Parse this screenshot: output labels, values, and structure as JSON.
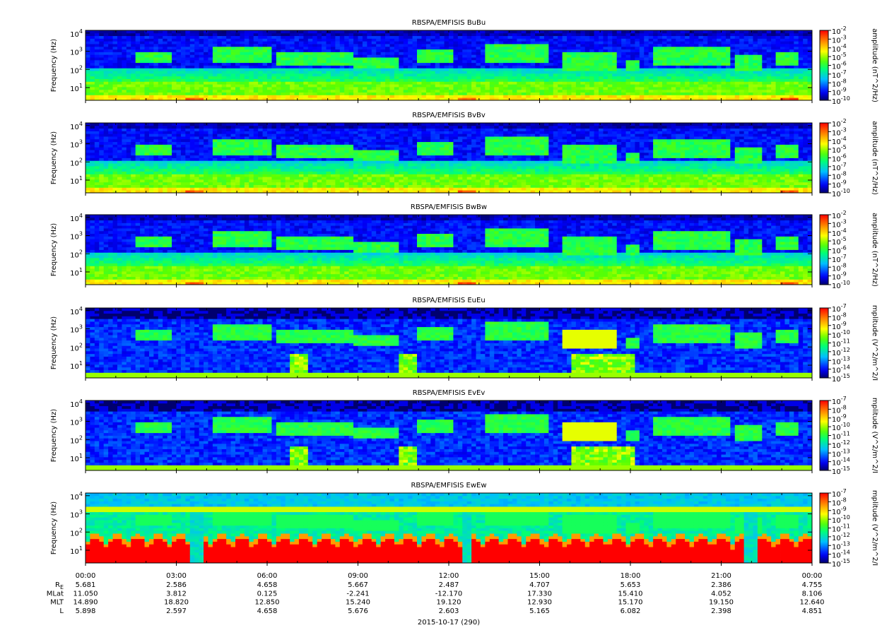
{
  "chart_data": [
    {
      "type": "spectrogram",
      "title": "RBSPA/EMFISIS  BuBu",
      "ylabel": "Frequency (Hz)",
      "ylim": [
        2,
        14000
      ],
      "log_y": true,
      "yticks": [
        {
          "value": 10,
          "label": "10",
          "power": "1"
        },
        {
          "value": 100,
          "label": "10",
          "power": "2"
        },
        {
          "value": 1000,
          "label": "10",
          "power": "3"
        },
        {
          "value": 10000,
          "label": "10",
          "power": "4"
        }
      ],
      "colorbar_label": "amplitude (nT^2/Hz)",
      "zlim": [
        1e-10,
        0.01
      ],
      "log_z": true,
      "zticks": [
        {
          "value": 1e-10,
          "label": "10",
          "power": "-10"
        },
        {
          "value": 1e-09,
          "label": "10",
          "power": "-9"
        },
        {
          "value": 1e-08,
          "label": "10",
          "power": "-8"
        },
        {
          "value": 1e-07,
          "label": "10",
          "power": "-7"
        },
        {
          "value": 1e-06,
          "label": "10",
          "power": "-6"
        },
        {
          "value": 1e-05,
          "label": "10",
          "power": "-5"
        },
        {
          "value": 0.0001,
          "label": "10",
          "power": "-4"
        },
        {
          "value": 0.001,
          "label": "10",
          "power": "-3"
        },
        {
          "value": 0.01,
          "label": "10",
          "power": "-2"
        }
      ]
    },
    {
      "type": "spectrogram",
      "title": "RBSPA/EMFISIS  BvBv",
      "ylabel": "Frequency (Hz)",
      "ylim": [
        2,
        14000
      ],
      "log_y": true,
      "yticks": [
        {
          "value": 10,
          "label": "10",
          "power": "1"
        },
        {
          "value": 100,
          "label": "10",
          "power": "2"
        },
        {
          "value": 1000,
          "label": "10",
          "power": "3"
        },
        {
          "value": 10000,
          "label": "10",
          "power": "4"
        }
      ],
      "colorbar_label": "amplitude (nT^2/Hz)",
      "zlim": [
        1e-10,
        0.01
      ],
      "log_z": true,
      "zticks": [
        {
          "value": 1e-10,
          "label": "10",
          "power": "-10"
        },
        {
          "value": 1e-09,
          "label": "10",
          "power": "-9"
        },
        {
          "value": 1e-08,
          "label": "10",
          "power": "-8"
        },
        {
          "value": 1e-07,
          "label": "10",
          "power": "-7"
        },
        {
          "value": 1e-06,
          "label": "10",
          "power": "-6"
        },
        {
          "value": 1e-05,
          "label": "10",
          "power": "-5"
        },
        {
          "value": 0.0001,
          "label": "10",
          "power": "-4"
        },
        {
          "value": 0.001,
          "label": "10",
          "power": "-3"
        },
        {
          "value": 0.01,
          "label": "10",
          "power": "-2"
        }
      ]
    },
    {
      "type": "spectrogram",
      "title": "RBSPA/EMFISIS  BwBw",
      "ylabel": "Frequency (Hz)",
      "ylim": [
        2,
        14000
      ],
      "log_y": true,
      "yticks": [
        {
          "value": 10,
          "label": "10",
          "power": "1"
        },
        {
          "value": 100,
          "label": "10",
          "power": "2"
        },
        {
          "value": 1000,
          "label": "10",
          "power": "3"
        },
        {
          "value": 10000,
          "label": "10",
          "power": "4"
        }
      ],
      "colorbar_label": "amplitude (nT^2/Hz)",
      "zlim": [
        1e-10,
        0.01
      ],
      "log_z": true,
      "zticks": [
        {
          "value": 1e-10,
          "label": "10",
          "power": "-10"
        },
        {
          "value": 1e-09,
          "label": "10",
          "power": "-9"
        },
        {
          "value": 1e-08,
          "label": "10",
          "power": "-8"
        },
        {
          "value": 1e-07,
          "label": "10",
          "power": "-7"
        },
        {
          "value": 1e-06,
          "label": "10",
          "power": "-6"
        },
        {
          "value": 1e-05,
          "label": "10",
          "power": "-5"
        },
        {
          "value": 0.0001,
          "label": "10",
          "power": "-4"
        },
        {
          "value": 0.001,
          "label": "10",
          "power": "-3"
        },
        {
          "value": 0.01,
          "label": "10",
          "power": "-2"
        }
      ]
    },
    {
      "type": "spectrogram",
      "title": "RBSPA/EMFISIS  EuEu",
      "ylabel": "Frequency (Hz)",
      "ylim": [
        2,
        14000
      ],
      "log_y": true,
      "yticks": [
        {
          "value": 10,
          "label": "10",
          "power": "1"
        },
        {
          "value": 100,
          "label": "10",
          "power": "2"
        },
        {
          "value": 1000,
          "label": "10",
          "power": "3"
        },
        {
          "value": 10000,
          "label": "10",
          "power": "4"
        }
      ],
      "colorbar_label": "mplitude (V^2/m^2/I",
      "zlim": [
        1e-15,
        1e-07
      ],
      "log_z": true,
      "zticks": [
        {
          "value": 1e-15,
          "label": "10",
          "power": "-15"
        },
        {
          "value": 1e-14,
          "label": "10",
          "power": "-14"
        },
        {
          "value": 1e-13,
          "label": "10",
          "power": "-13"
        },
        {
          "value": 1e-12,
          "label": "10",
          "power": "-12"
        },
        {
          "value": 1e-11,
          "label": "10",
          "power": "-11"
        },
        {
          "value": 1e-10,
          "label": "10",
          "power": "-10"
        },
        {
          "value": 1e-09,
          "label": "10",
          "power": "-9"
        },
        {
          "value": 1e-08,
          "label": "10",
          "power": "-8"
        },
        {
          "value": 1e-07,
          "label": "10",
          "power": "-7"
        }
      ]
    },
    {
      "type": "spectrogram",
      "title": "RBSPA/EMFISIS  EvEv",
      "ylabel": "Frequency (Hz)",
      "ylim": [
        2,
        14000
      ],
      "log_y": true,
      "yticks": [
        {
          "value": 10,
          "label": "10",
          "power": "1"
        },
        {
          "value": 100,
          "label": "10",
          "power": "2"
        },
        {
          "value": 1000,
          "label": "10",
          "power": "3"
        },
        {
          "value": 10000,
          "label": "10",
          "power": "4"
        }
      ],
      "colorbar_label": "mplitude (V^2/m^2/I",
      "zlim": [
        1e-15,
        1e-07
      ],
      "log_z": true,
      "zticks": [
        {
          "value": 1e-15,
          "label": "10",
          "power": "-15"
        },
        {
          "value": 1e-14,
          "label": "10",
          "power": "-14"
        },
        {
          "value": 1e-13,
          "label": "10",
          "power": "-13"
        },
        {
          "value": 1e-12,
          "label": "10",
          "power": "-12"
        },
        {
          "value": 1e-11,
          "label": "10",
          "power": "-11"
        },
        {
          "value": 1e-10,
          "label": "10",
          "power": "-10"
        },
        {
          "value": 1e-09,
          "label": "10",
          "power": "-9"
        },
        {
          "value": 1e-08,
          "label": "10",
          "power": "-8"
        },
        {
          "value": 1e-07,
          "label": "10",
          "power": "-7"
        }
      ]
    },
    {
      "type": "spectrogram",
      "title": "RBSPA/EMFISIS  EwEw",
      "ylabel": "Frequency (Hz)",
      "ylim": [
        2,
        14000
      ],
      "log_y": true,
      "yticks": [
        {
          "value": 10,
          "label": "10",
          "power": "1"
        },
        {
          "value": 100,
          "label": "10",
          "power": "2"
        },
        {
          "value": 1000,
          "label": "10",
          "power": "3"
        },
        {
          "value": 10000,
          "label": "10",
          "power": "4"
        }
      ],
      "colorbar_label": "mplitude (V^2/m^2/I",
      "zlim": [
        1e-15,
        1e-07
      ],
      "log_z": true,
      "zticks": [
        {
          "value": 1e-15,
          "label": "10",
          "power": "-15"
        },
        {
          "value": 1e-14,
          "label": "10",
          "power": "-14"
        },
        {
          "value": 1e-13,
          "label": "10",
          "power": "-13"
        },
        {
          "value": 1e-12,
          "label": "10",
          "power": "-12"
        },
        {
          "value": 1e-11,
          "label": "10",
          "power": "-11"
        },
        {
          "value": 1e-10,
          "label": "10",
          "power": "-10"
        },
        {
          "value": 1e-09,
          "label": "10",
          "power": "-9"
        },
        {
          "value": 1e-08,
          "label": "10",
          "power": "-8"
        },
        {
          "value": 1e-07,
          "label": "10",
          "power": "-7"
        }
      ]
    }
  ],
  "time_axis": {
    "xlim": [
      0,
      24
    ],
    "xticks": [
      {
        "value": 0,
        "label": "00:00"
      },
      {
        "value": 3,
        "label": "03:00"
      },
      {
        "value": 6,
        "label": "06:00"
      },
      {
        "value": 9,
        "label": "09:00"
      },
      {
        "value": 12,
        "label": "12:00"
      },
      {
        "value": 15,
        "label": "15:00"
      },
      {
        "value": 18,
        "label": "18:00"
      },
      {
        "value": 21,
        "label": "21:00"
      },
      {
        "value": 24,
        "label": "00:00"
      }
    ],
    "rows": [
      {
        "name": "R",
        "sub": "E",
        "values": [
          "5.681",
          "2.586",
          "4.658",
          "5.667",
          "2.487",
          "4.707",
          "5.653",
          "2.386",
          "4.755"
        ]
      },
      {
        "name": "MLat",
        "values": [
          "11.050",
          "3.812",
          "0.125",
          "-2.241",
          "-12.170",
          "17.330",
          "15.410",
          "4.052",
          "8.106"
        ]
      },
      {
        "name": "MLT",
        "values": [
          "14.890",
          "18.820",
          "12.850",
          "15.240",
          "19.120",
          "12.930",
          "15.170",
          "19.150",
          "12.640"
        ]
      },
      {
        "name": "L",
        "values": [
          "5.898",
          "2.597",
          "4.658",
          "5.676",
          "2.603",
          "5.165",
          "6.082",
          "2.398",
          "4.851"
        ]
      }
    ],
    "date": "2015-10-17 (290)"
  }
}
